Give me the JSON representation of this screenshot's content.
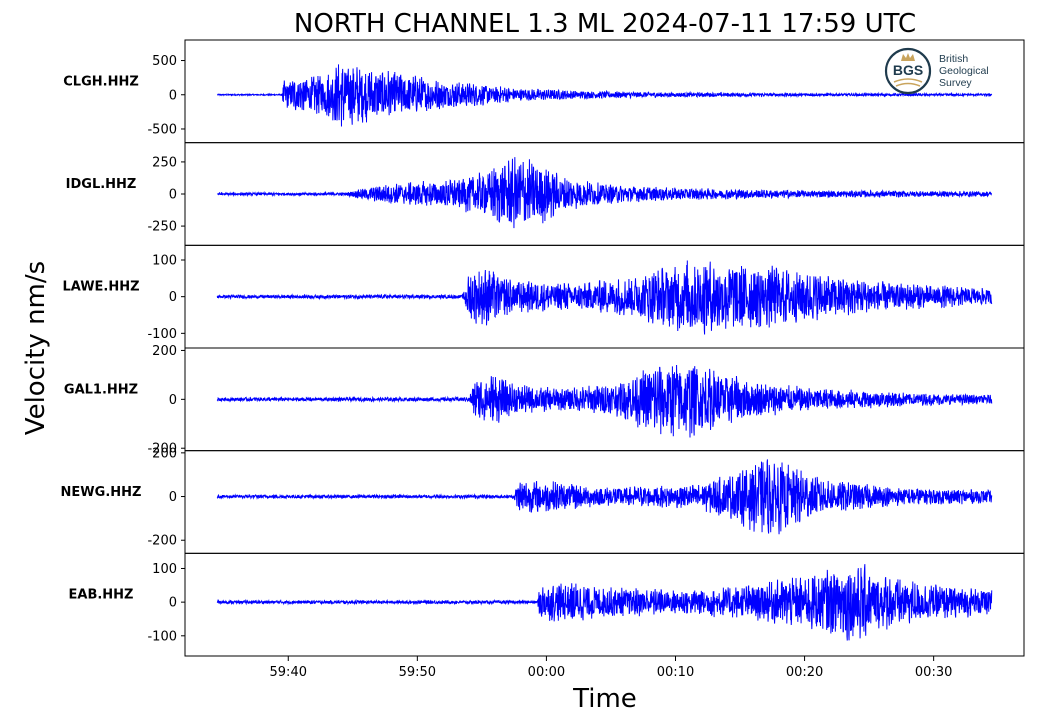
{
  "logo": {
    "mark": "BGS",
    "lines": [
      "British",
      "Geological",
      "Survey"
    ],
    "icon": "crown-icon",
    "color": "#1f3b4d",
    "accent": "#c9a45c"
  },
  "chart_data": {
    "type": "line",
    "title": "NORTH CHANNEL 1.3 ML   2024-07-11 17:59 UTC",
    "xlabel": "Time",
    "ylabel": "Velocity nm/s",
    "xlim": [
      "17:59:32",
      "18:00:37"
    ],
    "x_ticks": [
      "59:40",
      "59:50",
      "00:00",
      "00:10",
      "00:20",
      "00:30"
    ],
    "data_span": [
      "17:59:34.5",
      "18:00:34.5"
    ],
    "color": "#0000ff",
    "panels": [
      {
        "name": "CLGH.HHZ",
        "ylim": [
          -700,
          800
        ],
        "yticks": [
          500,
          0,
          -500
        ],
        "ytick_labels": [
          "500",
          "0",
          "-500"
        ],
        "noise": 10,
        "envelope": [
          [
            0,
            10
          ],
          [
            5,
            10
          ],
          [
            5.1,
            200
          ],
          [
            6,
            260
          ],
          [
            8,
            300
          ],
          [
            9.5,
            480
          ],
          [
            11,
            450
          ],
          [
            12,
            380
          ],
          [
            13.5,
            380
          ],
          [
            15,
            300
          ],
          [
            17,
            220
          ],
          [
            20,
            170
          ],
          [
            23,
            100
          ],
          [
            28,
            60
          ],
          [
            35,
            35
          ],
          [
            45,
            22
          ],
          [
            60,
            15
          ]
        ]
      },
      {
        "name": "IDGL.HHZ",
        "ylim": [
          -400,
          400
        ],
        "yticks": [
          250,
          0,
          -250
        ],
        "ytick_labels": [
          "250",
          "0",
          "-250"
        ],
        "noise": 8,
        "envelope": [
          [
            0,
            10
          ],
          [
            10,
            12
          ],
          [
            11,
            40
          ],
          [
            14,
            90
          ],
          [
            18,
            110
          ],
          [
            21,
            180
          ],
          [
            22.5,
            280
          ],
          [
            23.5,
            300
          ],
          [
            25,
            240
          ],
          [
            27,
            130
          ],
          [
            30,
            80
          ],
          [
            35,
            50
          ],
          [
            45,
            30
          ],
          [
            60,
            20
          ]
        ]
      },
      {
        "name": "LAWE.HHZ",
        "ylim": [
          -140,
          140
        ],
        "yticks": [
          100,
          0,
          -100
        ],
        "ytick_labels": [
          "100",
          "0",
          "-100"
        ],
        "noise": 4,
        "envelope": [
          [
            0,
            5
          ],
          [
            19,
            5
          ],
          [
            19.5,
            70
          ],
          [
            21,
            80
          ],
          [
            23,
            45
          ],
          [
            28,
            38
          ],
          [
            32,
            55
          ],
          [
            35,
            90
          ],
          [
            37,
            110
          ],
          [
            40,
            100
          ],
          [
            44,
            80
          ],
          [
            47,
            60
          ],
          [
            52,
            40
          ],
          [
            60,
            22
          ]
        ]
      },
      {
        "name": "GAL1.HHZ",
        "ylim": [
          -210,
          210
        ],
        "yticks": [
          200,
          0,
          -200
        ],
        "ytick_labels": [
          "200",
          "0",
          "-200"
        ],
        "noise": 6,
        "envelope": [
          [
            0,
            8
          ],
          [
            19.5,
            8
          ],
          [
            20,
            90
          ],
          [
            21.5,
            110
          ],
          [
            23,
            60
          ],
          [
            27,
            45
          ],
          [
            31,
            70
          ],
          [
            34,
            150
          ],
          [
            36,
            170
          ],
          [
            38,
            130
          ],
          [
            42,
            70
          ],
          [
            47,
            45
          ],
          [
            55,
            25
          ],
          [
            60,
            18
          ]
        ]
      },
      {
        "name": "NEWG.HHZ",
        "ylim": [
          -260,
          210
        ],
        "yticks": [
          200,
          0,
          -200
        ],
        "ytick_labels": [
          "200",
          "0",
          "-200"
        ],
        "noise": 7,
        "envelope": [
          [
            0,
            8
          ],
          [
            23,
            8
          ],
          [
            23.3,
            80
          ],
          [
            26,
            70
          ],
          [
            30,
            45
          ],
          [
            37,
            55
          ],
          [
            40,
            110
          ],
          [
            42.5,
            190
          ],
          [
            44,
            160
          ],
          [
            47,
            80
          ],
          [
            52,
            45
          ],
          [
            60,
            30
          ]
        ]
      },
      {
        "name": "EAB.HHZ",
        "ylim": [
          -160,
          145
        ],
        "yticks": [
          100,
          0,
          -100
        ],
        "ytick_labels": [
          "100",
          "0",
          "-100"
        ],
        "noise": 4,
        "envelope": [
          [
            0,
            5
          ],
          [
            24.8,
            5
          ],
          [
            25,
            55
          ],
          [
            27.5,
            60
          ],
          [
            30,
            45
          ],
          [
            36,
            40
          ],
          [
            42,
            55
          ],
          [
            47,
            95
          ],
          [
            49.5,
            130
          ],
          [
            51,
            90
          ],
          [
            55,
            55
          ],
          [
            60,
            40
          ]
        ]
      }
    ]
  }
}
